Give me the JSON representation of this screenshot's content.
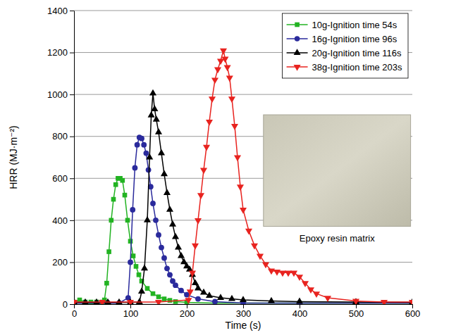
{
  "chart_data": {
    "type": "line",
    "x_label": "Time (s)",
    "y_label": "HRR (MJ·m⁻²)",
    "annotation": "Epoxy resin matrix",
    "xlim": [
      0,
      600
    ],
    "xticks": [
      0,
      100,
      200,
      300,
      400,
      500,
      600
    ],
    "ylim": [
      0,
      1400
    ],
    "yticks": [
      0,
      200,
      400,
      600,
      800,
      1000,
      1200,
      1400
    ],
    "grid": true,
    "legend": "top-right",
    "series": [
      {
        "name": "10g-Ignition time 54s",
        "color": "#22b322",
        "marker": "square",
        "line_style": "solid",
        "x": [
          0,
          10,
          20,
          30,
          40,
          50,
          54,
          58,
          62,
          66,
          70,
          74,
          78,
          82,
          86,
          90,
          95,
          100,
          105,
          110,
          115,
          120,
          130,
          140,
          150,
          160,
          170,
          180,
          200,
          250,
          300,
          400,
          500,
          600
        ],
        "values": [
          10,
          20,
          10,
          10,
          10,
          10,
          20,
          100,
          250,
          400,
          500,
          570,
          600,
          600,
          590,
          520,
          400,
          300,
          230,
          180,
          140,
          110,
          75,
          50,
          35,
          25,
          18,
          12,
          8,
          5,
          5,
          5,
          5,
          5
        ]
      },
      {
        "name": "16g-Ignition time 96s",
        "color": "#2a2a9c",
        "marker": "circle",
        "line_style": "solid",
        "x": [
          0,
          20,
          40,
          60,
          80,
          96,
          100,
          104,
          108,
          112,
          116,
          120,
          124,
          128,
          132,
          136,
          140,
          145,
          150,
          155,
          160,
          165,
          170,
          175,
          180,
          190,
          200,
          220,
          250,
          300,
          400,
          500,
          600
        ],
        "values": [
          5,
          5,
          5,
          5,
          5,
          30,
          200,
          450,
          650,
          760,
          795,
          790,
          760,
          720,
          640,
          560,
          480,
          400,
          330,
          270,
          220,
          170,
          140,
          110,
          90,
          65,
          45,
          25,
          12,
          5,
          5,
          5,
          5
        ]
      },
      {
        "name": "20g-Ignition time 116s",
        "color": "#000000",
        "marker": "triangle-up",
        "line_style": "solid",
        "x": [
          0,
          20,
          40,
          60,
          80,
          100,
          116,
          120,
          125,
          130,
          134,
          137,
          140,
          143,
          146,
          150,
          155,
          160,
          165,
          170,
          175,
          180,
          185,
          190,
          195,
          200,
          205,
          210,
          215,
          220,
          230,
          240,
          260,
          280,
          300,
          350,
          400,
          500,
          600
        ],
        "values": [
          8,
          8,
          8,
          8,
          8,
          8,
          10,
          60,
          170,
          400,
          700,
          900,
          1005,
          930,
          880,
          820,
          720,
          620,
          530,
          450,
          380,
          320,
          270,
          230,
          200,
          180,
          165,
          140,
          100,
          75,
          55,
          40,
          30,
          25,
          20,
          15,
          12,
          10,
          8
        ]
      },
      {
        "name": "38g-Ignition time 203s",
        "color": "#e8231f",
        "marker": "triangle-down",
        "line_style": "solid",
        "x": [
          0,
          50,
          100,
          150,
          203,
          206,
          210,
          215,
          220,
          225,
          230,
          235,
          240,
          245,
          250,
          255,
          260,
          265,
          268,
          272,
          276,
          280,
          285,
          290,
          295,
          300,
          310,
          320,
          330,
          340,
          350,
          360,
          370,
          380,
          390,
          400,
          410,
          420,
          430,
          450,
          500,
          550,
          600
        ],
        "values": [
          10,
          10,
          10,
          10,
          20,
          60,
          150,
          280,
          400,
          520,
          640,
          750,
          870,
          980,
          1070,
          1120,
          1160,
          1210,
          1170,
          1130,
          1080,
          980,
          850,
          700,
          560,
          450,
          350,
          280,
          230,
          190,
          160,
          155,
          150,
          150,
          150,
          130,
          100,
          70,
          50,
          30,
          15,
          10,
          10
        ]
      }
    ]
  }
}
